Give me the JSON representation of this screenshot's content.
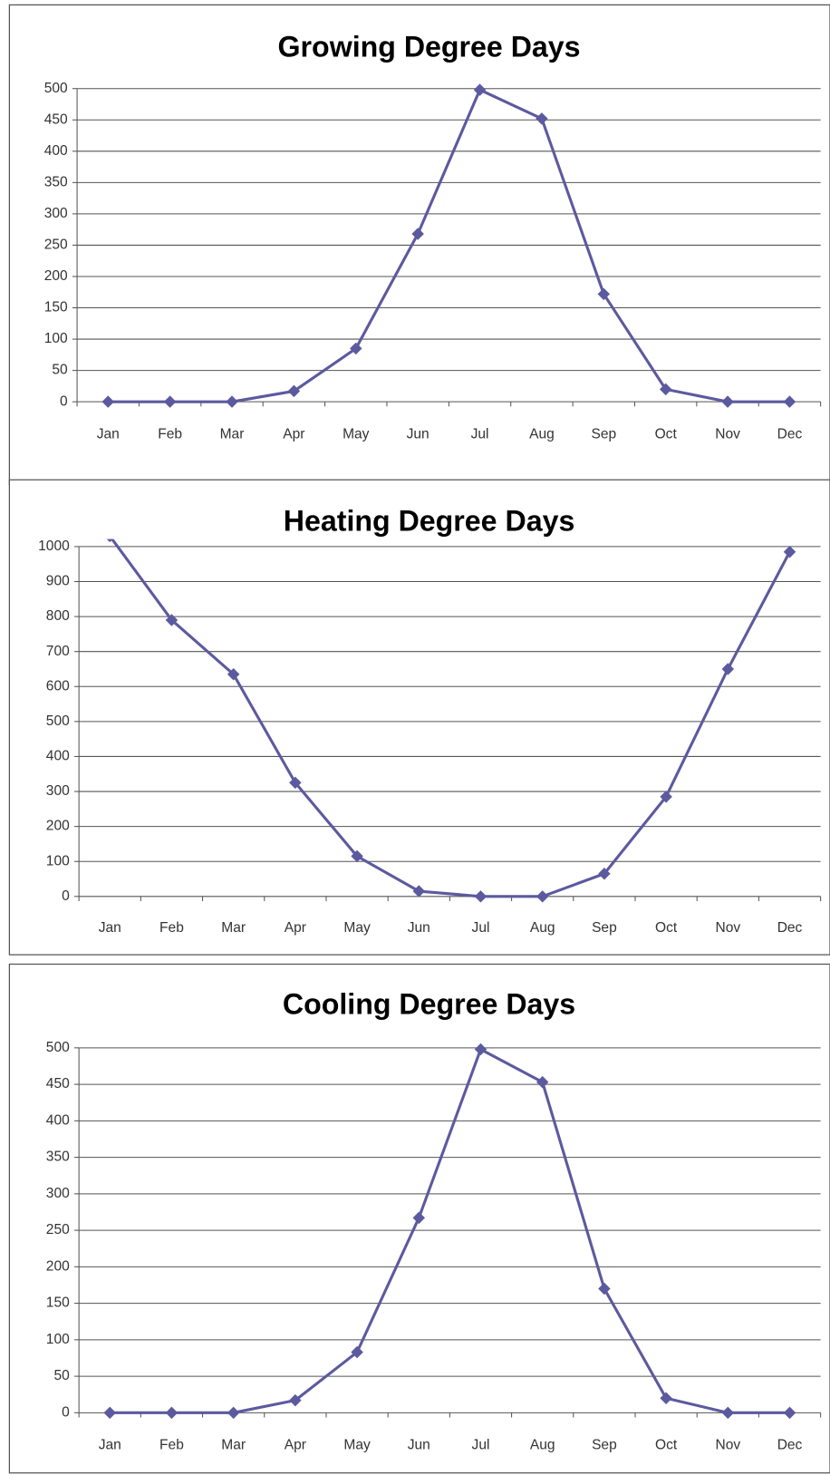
{
  "chart_data": [
    {
      "type": "line",
      "title": "Growing Degree Days",
      "categories": [
        "Jan",
        "Feb",
        "Mar",
        "Apr",
        "May",
        "Jun",
        "Jul",
        "Aug",
        "Sep",
        "Oct",
        "Nov",
        "Dec"
      ],
      "values": [
        0,
        0,
        0,
        17,
        85,
        268,
        498,
        452,
        172,
        20,
        0,
        0
      ],
      "color": "#5c5a9e",
      "ylim": [
        0,
        500
      ],
      "yticks": [
        0,
        50,
        100,
        150,
        200,
        250,
        300,
        350,
        400,
        450,
        500
      ],
      "grid": true
    },
    {
      "type": "line",
      "title": "Heating Degree Days",
      "categories": [
        "Jan",
        "Feb",
        "Mar",
        "Apr",
        "May",
        "Jun",
        "Jul",
        "Aug",
        "Sep",
        "Oct",
        "Nov",
        "Dec"
      ],
      "values": [
        1030,
        790,
        635,
        325,
        115,
        15,
        0,
        0,
        65,
        285,
        650,
        985
      ],
      "color": "#5c5a9e",
      "ylim": [
        0,
        1000
      ],
      "yticks": [
        0,
        100,
        200,
        300,
        400,
        500,
        600,
        700,
        800,
        900,
        1000
      ],
      "grid": true
    },
    {
      "type": "line",
      "title": "Cooling Degree Days",
      "categories": [
        "Jan",
        "Feb",
        "Mar",
        "Apr",
        "May",
        "Jun",
        "Jul",
        "Aug",
        "Sep",
        "Oct",
        "Nov",
        "Dec"
      ],
      "values": [
        0,
        0,
        0,
        17,
        83,
        267,
        498,
        453,
        170,
        20,
        0,
        0
      ],
      "color": "#5c5a9e",
      "ylim": [
        0,
        500
      ],
      "yticks": [
        0,
        50,
        100,
        150,
        200,
        250,
        300,
        350,
        400,
        450,
        500
      ],
      "grid": true
    }
  ]
}
